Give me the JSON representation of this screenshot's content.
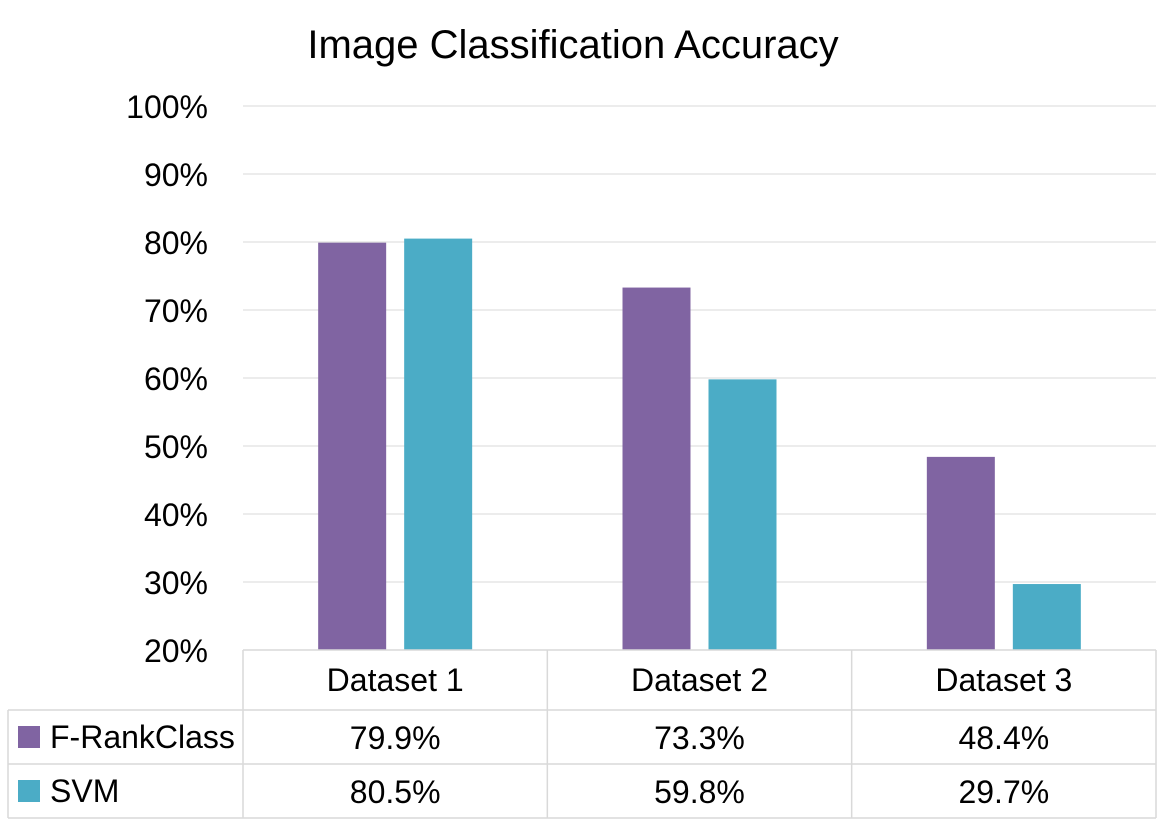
{
  "chart_data": {
    "type": "bar",
    "title": "Image Classification Accuracy",
    "categories": [
      "Dataset 1",
      "Dataset 2",
      "Dataset 3"
    ],
    "series": [
      {
        "name": "F-RankClass",
        "values": [
          79.9,
          73.3,
          48.4
        ],
        "labels": [
          "79.9%",
          "73.3%",
          "48.4%"
        ],
        "color": "#8064a2"
      },
      {
        "name": "SVM",
        "values": [
          80.5,
          59.8,
          29.7
        ],
        "labels": [
          "80.5%",
          "59.8%",
          "29.7%"
        ],
        "color": "#4bacc6"
      }
    ],
    "ylim": [
      20,
      100
    ],
    "yticks": [
      "20%",
      "30%",
      "40%",
      "50%",
      "60%",
      "70%",
      "80%",
      "90%",
      "100%"
    ],
    "grid": true,
    "legend": "data-table",
    "colors": {
      "gridline": "#d9d9d9",
      "table_border": "#d9d9d9"
    }
  }
}
